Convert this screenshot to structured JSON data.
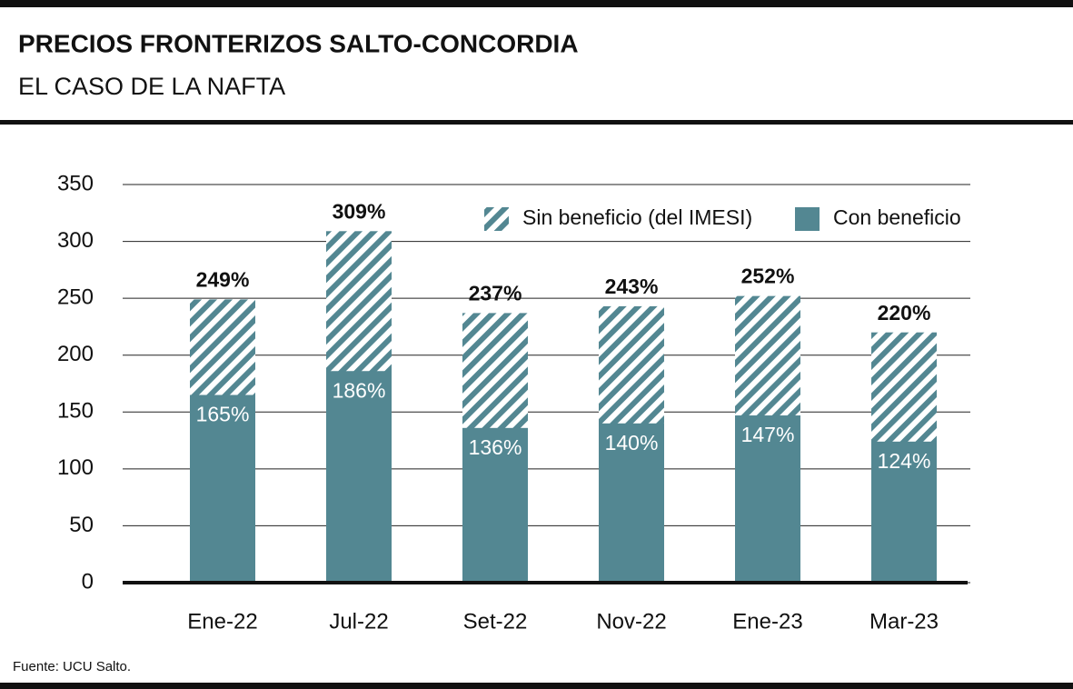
{
  "chart_data": {
    "type": "bar",
    "title": "PRECIOS FRONTERIZOS SALTO-CONCORDIA",
    "subtitle": "EL CASO DE LA NAFTA",
    "source": "Fuente: UCU Salto.",
    "categories": [
      "Ene-22",
      "Jul-22",
      "Set-22",
      "Nov-22",
      "Ene-23",
      "Mar-23"
    ],
    "series": [
      {
        "name": "Sin beneficio (del IMESI)",
        "color": "#538792",
        "pattern": "hatch",
        "values": [
          249,
          309,
          237,
          243,
          252,
          220
        ],
        "value_labels": [
          "249%",
          "309%",
          "237%",
          "243%",
          "252%",
          "220%"
        ]
      },
      {
        "name": "Con beneficio",
        "color": "#538792",
        "pattern": "solid",
        "values": [
          165,
          186,
          136,
          140,
          147,
          124
        ],
        "value_labels": [
          "165%",
          "186%",
          "136%",
          "140%",
          "147%",
          "124%"
        ]
      }
    ],
    "ylim": [
      0,
      350
    ],
    "yticks": [
      0,
      50,
      100,
      150,
      200,
      250,
      300,
      350
    ],
    "grid": true
  }
}
